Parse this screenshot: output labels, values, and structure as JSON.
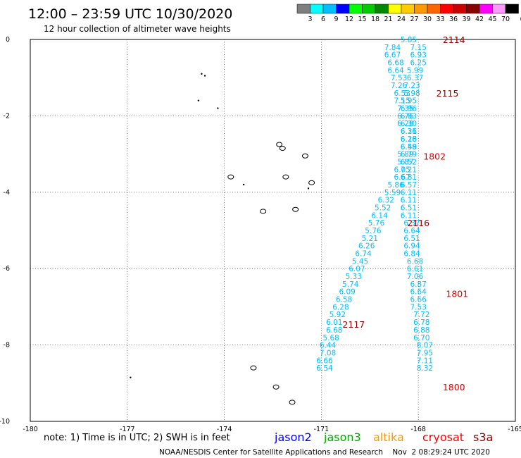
{
  "header": {
    "title": "12:00 – 23:59 UTC 10/30/2020",
    "subtitle": "12 hour collection of altimeter wave heights"
  },
  "color_legend": {
    "labels": [
      "3",
      "6",
      "9",
      "12",
      "15",
      "18",
      "21",
      "24",
      "27",
      "30",
      "33",
      "36",
      "39",
      "42",
      "45",
      "70"
    ],
    "unit": "(ft)",
    "colors": [
      "#7f7f7f",
      "#00ffff",
      "#00bfff",
      "#0000ff",
      "#00ff00",
      "#00cc00",
      "#008800",
      "#ffff00",
      "#ffcc00",
      "#ff9900",
      "#ff6600",
      "#ff0000",
      "#cc0000",
      "#880000",
      "#ff00ff",
      "#ff99ff",
      "#000000"
    ]
  },
  "footer": {
    "note": "note: 1) Time is in UTC; 2) SWH is in feet",
    "credit": "NOAA/NESDIS Center for Satellite Applications and Research    Nov  2 08:29:24 UTC 2020",
    "satellites": [
      {
        "name": "jason2",
        "color": "#0000ff"
      },
      {
        "name": "jason3",
        "color": "#00aa00"
      },
      {
        "name": "altika",
        "color": "#ff9900"
      },
      {
        "name": "cryosat",
        "color": "#ff0000"
      },
      {
        "name": "s3a",
        "color": "#8b0000"
      }
    ]
  },
  "chart_data": {
    "type": "scatter",
    "title": "12:00 – 23:59 UTC 10/30/2020",
    "xlim": [
      -180,
      -165
    ],
    "ylim": [
      -10,
      0
    ],
    "x_ticks": [
      "-180",
      "-177",
      "-174",
      "-171",
      "-168",
      "-165"
    ],
    "y_ticks": [
      "0",
      "-2",
      "-4",
      "-6",
      "-8",
      "-10"
    ],
    "grid": true,
    "point_color": "#00bfff",
    "tracks": [
      {
        "name": "pass A",
        "points": [
          {
            "x": -168.3,
            "y": 0.0,
            "label": "5.85"
          },
          {
            "x": -168.8,
            "y": -0.2,
            "label": "7.84"
          },
          {
            "x": -168.8,
            "y": -0.4,
            "label": "6.67"
          },
          {
            "x": -168.7,
            "y": -0.6,
            "label": "6.68"
          },
          {
            "x": -168.7,
            "y": -0.8,
            "label": "6.64"
          },
          {
            "x": -168.6,
            "y": -1.0,
            "label": "7.53"
          },
          {
            "x": -168.6,
            "y": -1.2,
            "label": "7.26"
          },
          {
            "x": -168.5,
            "y": -1.4,
            "label": "6.53"
          },
          {
            "x": -168.5,
            "y": -1.6,
            "label": "7.15"
          },
          {
            "x": -168.4,
            "y": -1.8,
            "label": "7.35"
          },
          {
            "x": -168.4,
            "y": -2.0,
            "label": "6.76"
          },
          {
            "x": -168.4,
            "y": -2.2,
            "label": "6.28"
          },
          {
            "x": -168.3,
            "y": -2.4,
            "label": "6.31"
          },
          {
            "x": -168.3,
            "y": -2.6,
            "label": "6.28"
          },
          {
            "x": -168.3,
            "y": -2.8,
            "label": "6.58"
          },
          {
            "x": -168.4,
            "y": -3.0,
            "label": "5.89"
          },
          {
            "x": -168.4,
            "y": -3.2,
            "label": "5.87"
          },
          {
            "x": -168.5,
            "y": -3.4,
            "label": "6.05"
          },
          {
            "x": -168.5,
            "y": -3.6,
            "label": "6.67"
          },
          {
            "x": -168.7,
            "y": -3.8,
            "label": "5.86"
          },
          {
            "x": -168.8,
            "y": -4.0,
            "label": "5.59"
          },
          {
            "x": -169.0,
            "y": -4.2,
            "label": "6.32"
          },
          {
            "x": -169.1,
            "y": -4.4,
            "label": "5.52"
          },
          {
            "x": -169.2,
            "y": -4.6,
            "label": "6.14"
          },
          {
            "x": -169.3,
            "y": -4.8,
            "label": "5.76"
          },
          {
            "x": -169.4,
            "y": -5.0,
            "label": "5.76"
          },
          {
            "x": -169.5,
            "y": -5.2,
            "label": "5.21"
          },
          {
            "x": -169.6,
            "y": -5.4,
            "label": "6.26"
          },
          {
            "x": -169.7,
            "y": -5.6,
            "label": "6.74"
          },
          {
            "x": -169.8,
            "y": -5.8,
            "label": "5.45"
          },
          {
            "x": -169.9,
            "y": -6.0,
            "label": "6.07"
          },
          {
            "x": -170.0,
            "y": -6.2,
            "label": "5.33"
          },
          {
            "x": -170.1,
            "y": -6.4,
            "label": "5.74"
          },
          {
            "x": -170.2,
            "y": -6.6,
            "label": "6.09"
          },
          {
            "x": -170.3,
            "y": -6.8,
            "label": "6.58"
          },
          {
            "x": -170.4,
            "y": -7.0,
            "label": "6.28"
          },
          {
            "x": -170.5,
            "y": -7.2,
            "label": "5.92"
          },
          {
            "x": -170.6,
            "y": -7.4,
            "label": "6.01"
          },
          {
            "x": -170.6,
            "y": -7.6,
            "label": "6.68"
          },
          {
            "x": -170.7,
            "y": -7.8,
            "label": "5.68"
          },
          {
            "x": -170.8,
            "y": -8.0,
            "label": "6.44"
          },
          {
            "x": -170.8,
            "y": -8.2,
            "label": "7.08"
          },
          {
            "x": -170.9,
            "y": -8.4,
            "label": "6.66"
          },
          {
            "x": -170.9,
            "y": -8.6,
            "label": "6.54"
          }
        ]
      },
      {
        "name": "pass B",
        "points": [
          {
            "x": -168.0,
            "y": -0.2,
            "label": "7.15"
          },
          {
            "x": -168.0,
            "y": -0.4,
            "label": "6.93"
          },
          {
            "x": -168.0,
            "y": -0.6,
            "label": "6.25"
          },
          {
            "x": -168.1,
            "y": -0.8,
            "label": "5.99"
          },
          {
            "x": -168.1,
            "y": -1.0,
            "label": "6.37"
          },
          {
            "x": -168.2,
            "y": -1.2,
            "label": "7.23"
          },
          {
            "x": -168.2,
            "y": -1.4,
            "label": "5.98"
          },
          {
            "x": -168.3,
            "y": -1.6,
            "label": "5.95"
          },
          {
            "x": -168.3,
            "y": -1.8,
            "label": "6.96"
          },
          {
            "x": -168.3,
            "y": -2.0,
            "label": "6.83"
          },
          {
            "x": -168.3,
            "y": -2.2,
            "label": "6.30"
          },
          {
            "x": -168.3,
            "y": -2.4,
            "label": "6.26"
          },
          {
            "x": -168.3,
            "y": -2.6,
            "label": "6.16"
          },
          {
            "x": -168.3,
            "y": -2.8,
            "label": "6.49"
          },
          {
            "x": -168.3,
            "y": -3.0,
            "label": "6.79"
          },
          {
            "x": -168.3,
            "y": -3.2,
            "label": "6.52"
          },
          {
            "x": -168.3,
            "y": -3.4,
            "label": "7.21"
          },
          {
            "x": -168.3,
            "y": -3.6,
            "label": "6.81"
          },
          {
            "x": -168.3,
            "y": -3.8,
            "label": "6.57"
          },
          {
            "x": -168.3,
            "y": -4.0,
            "label": "6.11"
          },
          {
            "x": -168.3,
            "y": -4.2,
            "label": "6.11"
          },
          {
            "x": -168.3,
            "y": -4.4,
            "label": "6.51"
          },
          {
            "x": -168.3,
            "y": -4.6,
            "label": "6.11"
          },
          {
            "x": -168.2,
            "y": -4.8,
            "label": "6.37"
          },
          {
            "x": -168.2,
            "y": -5.0,
            "label": "6.64"
          },
          {
            "x": -168.2,
            "y": -5.2,
            "label": "6.51"
          },
          {
            "x": -168.2,
            "y": -5.4,
            "label": "6.94"
          },
          {
            "x": -168.2,
            "y": -5.6,
            "label": "6.84"
          },
          {
            "x": -168.1,
            "y": -5.8,
            "label": "6.68"
          },
          {
            "x": -168.1,
            "y": -6.0,
            "label": "6.61"
          },
          {
            "x": -168.1,
            "y": -6.2,
            "label": "7.06"
          },
          {
            "x": -168.0,
            "y": -6.4,
            "label": "6.87"
          },
          {
            "x": -168.0,
            "y": -6.6,
            "label": "6.64"
          },
          {
            "x": -168.0,
            "y": -6.8,
            "label": "6.66"
          },
          {
            "x": -168.0,
            "y": -7.0,
            "label": "7.53"
          },
          {
            "x": -167.9,
            "y": -7.2,
            "label": "7.72"
          },
          {
            "x": -167.9,
            "y": -7.4,
            "label": "6.78"
          },
          {
            "x": -167.9,
            "y": -7.6,
            "label": "6.88"
          },
          {
            "x": -167.9,
            "y": -7.8,
            "label": "6.70"
          },
          {
            "x": -167.8,
            "y": -8.0,
            "label": "8.07"
          },
          {
            "x": -167.8,
            "y": -8.2,
            "label": "7.95"
          },
          {
            "x": -167.8,
            "y": -8.4,
            "label": "7.11"
          },
          {
            "x": -167.8,
            "y": -8.6,
            "label": "8.32"
          }
        ]
      }
    ],
    "time_labels": [
      {
        "x": -166.9,
        "y": 0.0,
        "label": "2114",
        "color": "#8b0000"
      },
      {
        "x": -167.1,
        "y": -1.4,
        "label": "2115",
        "color": "#8b0000"
      },
      {
        "x": -167.5,
        "y": -3.05,
        "label": "1802",
        "color": "#dd0000"
      },
      {
        "x": -168.0,
        "y": -4.8,
        "label": "2116",
        "color": "#8b0000"
      },
      {
        "x": -166.8,
        "y": -6.65,
        "label": "1801",
        "color": "#dd0000"
      },
      {
        "x": -170.0,
        "y": -7.45,
        "label": "2117",
        "color": "#8b0000"
      },
      {
        "x": -166.9,
        "y": -9.1,
        "label": "1800",
        "color": "#dd0000"
      }
    ],
    "islands": [
      {
        "x": -174.7,
        "y": -0.9,
        "shape": "dot"
      },
      {
        "x": -174.6,
        "y": -0.95,
        "shape": "dot"
      },
      {
        "x": -174.8,
        "y": -1.6,
        "shape": "dot"
      },
      {
        "x": -174.2,
        "y": -1.8,
        "shape": "dot"
      },
      {
        "x": -172.3,
        "y": -2.75,
        "shape": "atoll"
      },
      {
        "x": -172.2,
        "y": -2.85,
        "shape": "atoll"
      },
      {
        "x": -171.5,
        "y": -3.05,
        "shape": "atoll"
      },
      {
        "x": -172.1,
        "y": -3.6,
        "shape": "atoll"
      },
      {
        "x": -171.3,
        "y": -3.75,
        "shape": "atoll"
      },
      {
        "x": -171.4,
        "y": -3.9,
        "shape": "dot"
      },
      {
        "x": -173.8,
        "y": -3.6,
        "shape": "atoll"
      },
      {
        "x": -173.4,
        "y": -3.8,
        "shape": "dot"
      },
      {
        "x": -172.8,
        "y": -4.5,
        "shape": "atoll"
      },
      {
        "x": -171.8,
        "y": -4.45,
        "shape": "atoll"
      },
      {
        "x": -176.9,
        "y": -8.85,
        "shape": "dot"
      },
      {
        "x": -173.1,
        "y": -8.6,
        "shape": "atoll"
      },
      {
        "x": -172.4,
        "y": -9.1,
        "shape": "atoll"
      },
      {
        "x": -171.9,
        "y": -9.5,
        "shape": "atoll"
      }
    ]
  }
}
